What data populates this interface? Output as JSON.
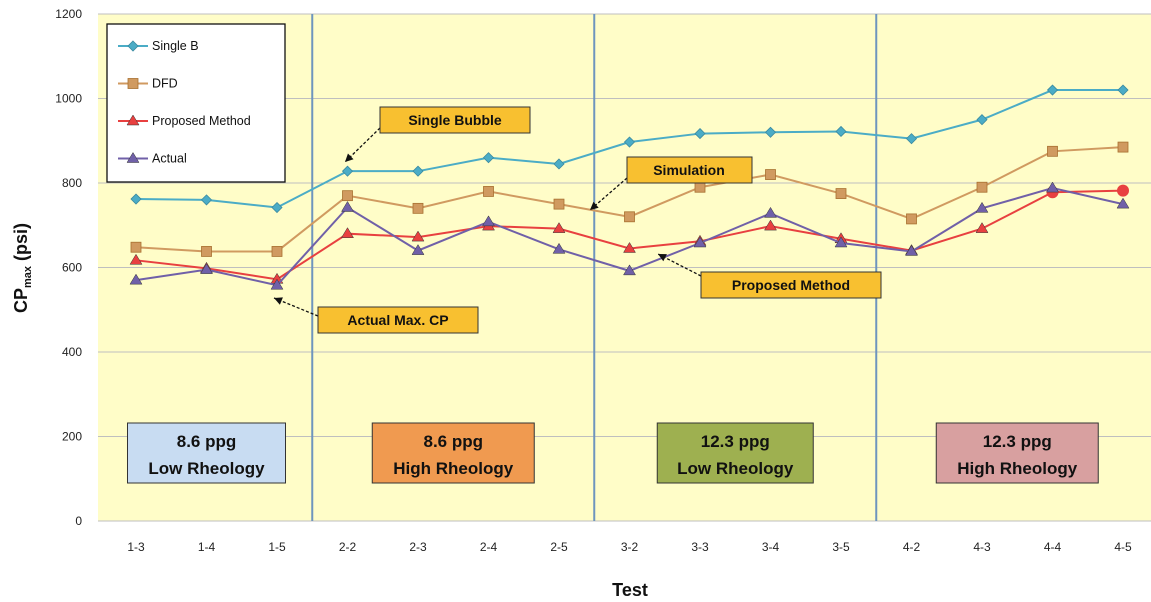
{
  "chart_data": {
    "type": "line",
    "categories": [
      "1-3",
      "1-4",
      "1-5",
      "2-2",
      "2-3",
      "2-4",
      "2-5",
      "3-2",
      "3-3",
      "3-4",
      "3-5",
      "4-2",
      "4-3",
      "4-4",
      "4-5"
    ],
    "series": [
      {
        "name": "Single B",
        "color": "#4BACC6",
        "marker": "diamond",
        "values": [
          762,
          760,
          742,
          828,
          828,
          860,
          845,
          897,
          917,
          920,
          922,
          905,
          950,
          1020,
          1020
        ]
      },
      {
        "name": "DFD",
        "color": "#D09A60",
        "marker": "square",
        "values": [
          648,
          638,
          638,
          770,
          740,
          780,
          750,
          720,
          790,
          820,
          775,
          715,
          790,
          875,
          885
        ]
      },
      {
        "name": "Proposed Method",
        "color": "#E84040",
        "marker": "triangle",
        "values": [
          617,
          598,
          572,
          680,
          672,
          698,
          692,
          645,
          662,
          698,
          668,
          640,
          692,
          778,
          782
        ]
      },
      {
        "name": "Actual",
        "color": "#7060A8",
        "marker": "triangle",
        "values": [
          570,
          595,
          558,
          742,
          640,
          708,
          643,
          592,
          658,
          728,
          658,
          638,
          740,
          788,
          750
        ]
      }
    ],
    "xlabel": "Test",
    "ylabel_main": "CP",
    "ylabel_sub": "max",
    "ylabel_unit": " (psi)",
    "ylim": [
      0,
      1200
    ],
    "yticks": [
      0,
      200,
      400,
      600,
      800,
      1000,
      1200
    ],
    "grid": true,
    "legend_position": "top-left",
    "plot_background": "#FFFDC8",
    "separator_color": "#6E95BE",
    "groups": [
      {
        "line1": "8.6 ppg",
        "line2": "Low Rheology",
        "color": "#C8DCF2"
      },
      {
        "line1": "8.6 ppg",
        "line2": "High Rheology",
        "color": "#F09A50"
      },
      {
        "line1": "12.3 ppg",
        "line2": "Low Rheology",
        "color": "#9EB050"
      },
      {
        "line1": "12.3 ppg",
        "line2": "High Rheology",
        "color": "#D8A0A0"
      }
    ],
    "annotations": [
      {
        "text": "Single Bubble"
      },
      {
        "text": "Simulation"
      },
      {
        "text": "Proposed Method"
      },
      {
        "text": "Actual Max. CP"
      }
    ],
    "callout_color": "#F8C030"
  }
}
